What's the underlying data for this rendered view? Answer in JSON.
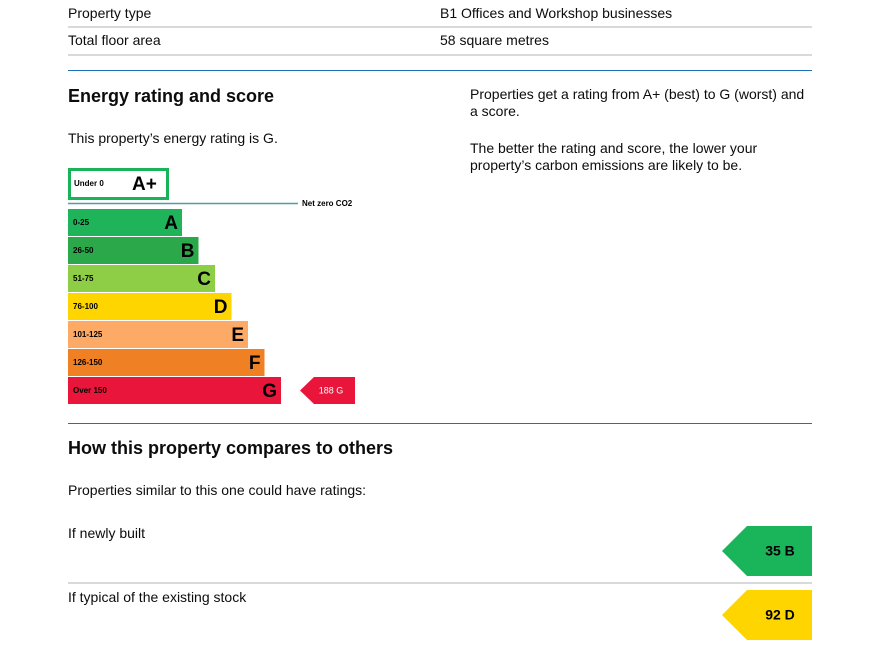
{
  "property_details": {
    "rows": [
      [
        "Property type",
        "B1 Offices and Workshop businesses"
      ],
      [
        "Total floor area",
        "58 square metres"
      ]
    ]
  },
  "energy_rating": {
    "title": "Energy rating and score",
    "statement": "This property’s energy rating is G.",
    "info": [
      "Properties get a rating from A+ (best) to G (worst) and a score.",
      "The better the rating and score, the lower your property’s carbon emissions are likely to be."
    ],
    "net_zero": "Net zero CO2",
    "scale": [
      {
        "range": "Under 0",
        "letter": "A+"
      },
      {
        "range": "0-25",
        "letter": "A"
      },
      {
        "range": "26-50",
        "letter": "B"
      },
      {
        "range": "51-75",
        "letter": "C"
      },
      {
        "range": "76-100",
        "letter": "D"
      },
      {
        "range": "101-125",
        "letter": "E"
      },
      {
        "range": "126-150",
        "letter": "F"
      },
      {
        "range": "Over 150",
        "letter": "G"
      }
    ],
    "current": "188 G"
  },
  "comparison": {
    "title": "How this property compares to others",
    "intro": "Properties similar to this one could have ratings:",
    "rows": [
      {
        "label": "If newly built",
        "rating": "35 B"
      },
      {
        "label": "If typical of the existing stock",
        "rating": "92 D"
      }
    ]
  }
}
